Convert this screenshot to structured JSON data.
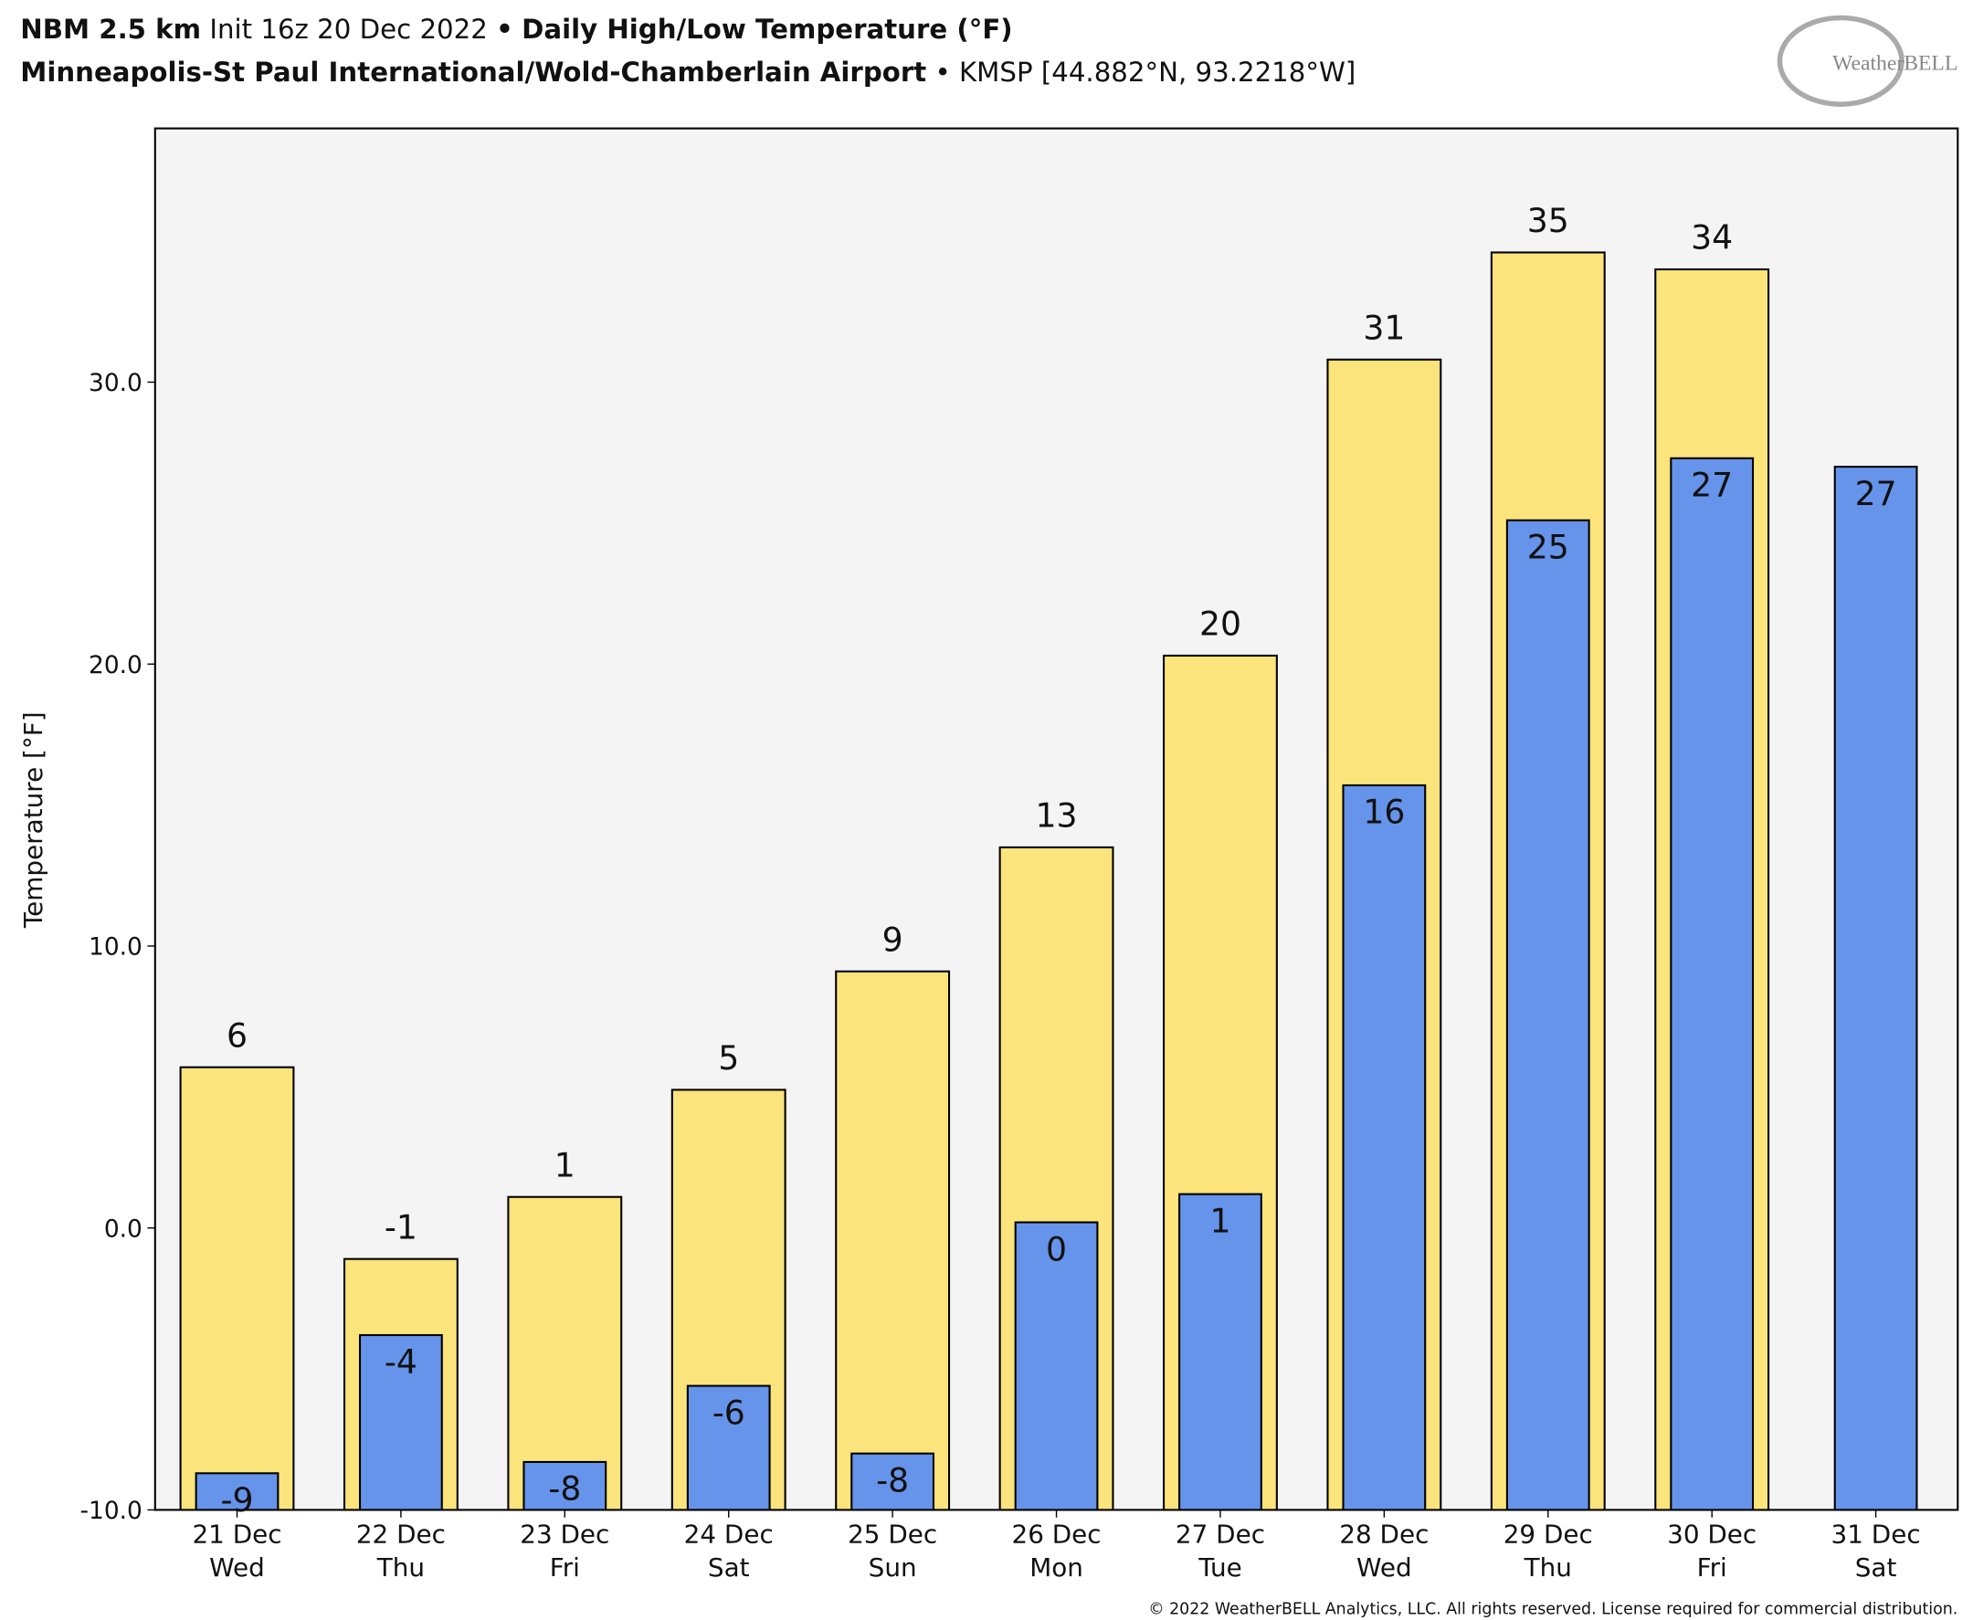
{
  "header": {
    "model": "NBM 2.5 km",
    "init": "Init 16z 20 Dec 2022",
    "sep": "•",
    "product": "Daily High/Low Temperature (°F)",
    "station": "Minneapolis-St Paul International/Wold-Chamberlain Airport",
    "station_info": "• KMSP [44.882°N, 93.2218°W]",
    "logo": "WeatherBELL",
    "copyright": "© 2022 WeatherBELL Analytics, LLC. All rights reserved. License required for commercial distribution."
  },
  "chart_data": {
    "type": "bar",
    "y_label": "Temperature [°F]",
    "categories": [
      "21 Dec",
      "22 Dec",
      "23 Dec",
      "24 Dec",
      "25 Dec",
      "26 Dec",
      "27 Dec",
      "28 Dec",
      "29 Dec",
      "30 Dec",
      "31 Dec"
    ],
    "weekdays": [
      "Wed",
      "Thu",
      "Fri",
      "Sat",
      "Sun",
      "Mon",
      "Tue",
      "Wed",
      "Thu",
      "Fri",
      "Sat"
    ],
    "series": [
      {
        "color": "#fce47c",
        "values": [
          5.7,
          -1.1,
          1.1,
          4.9,
          9.1,
          13.5,
          20.3,
          30.8,
          34.6,
          34.0,
          null
        ],
        "value_labels": [
          "6",
          "-1",
          "1",
          "5",
          "9",
          "13",
          "20",
          "31",
          "35",
          "34",
          null
        ]
      },
      {
        "color": "#6694ea",
        "values": [
          -8.7,
          -3.8,
          -8.3,
          -5.6,
          -8.0,
          0.2,
          1.2,
          15.7,
          25.1,
          27.3,
          27.0
        ],
        "value_labels": [
          "-9",
          "-4",
          "-8",
          "-6",
          "-8",
          "0",
          "1",
          "16",
          "25",
          "27",
          "27"
        ]
      }
    ],
    "ylim": [
      -10,
      39
    ],
    "yticks": [
      {
        "value": -10,
        "label": "-10.0"
      },
      {
        "value": 0,
        "label": "0.0"
      },
      {
        "value": 10,
        "label": "10.0"
      },
      {
        "value": 20,
        "label": "20.0"
      },
      {
        "value": 30,
        "label": "30.0"
      }
    ]
  }
}
